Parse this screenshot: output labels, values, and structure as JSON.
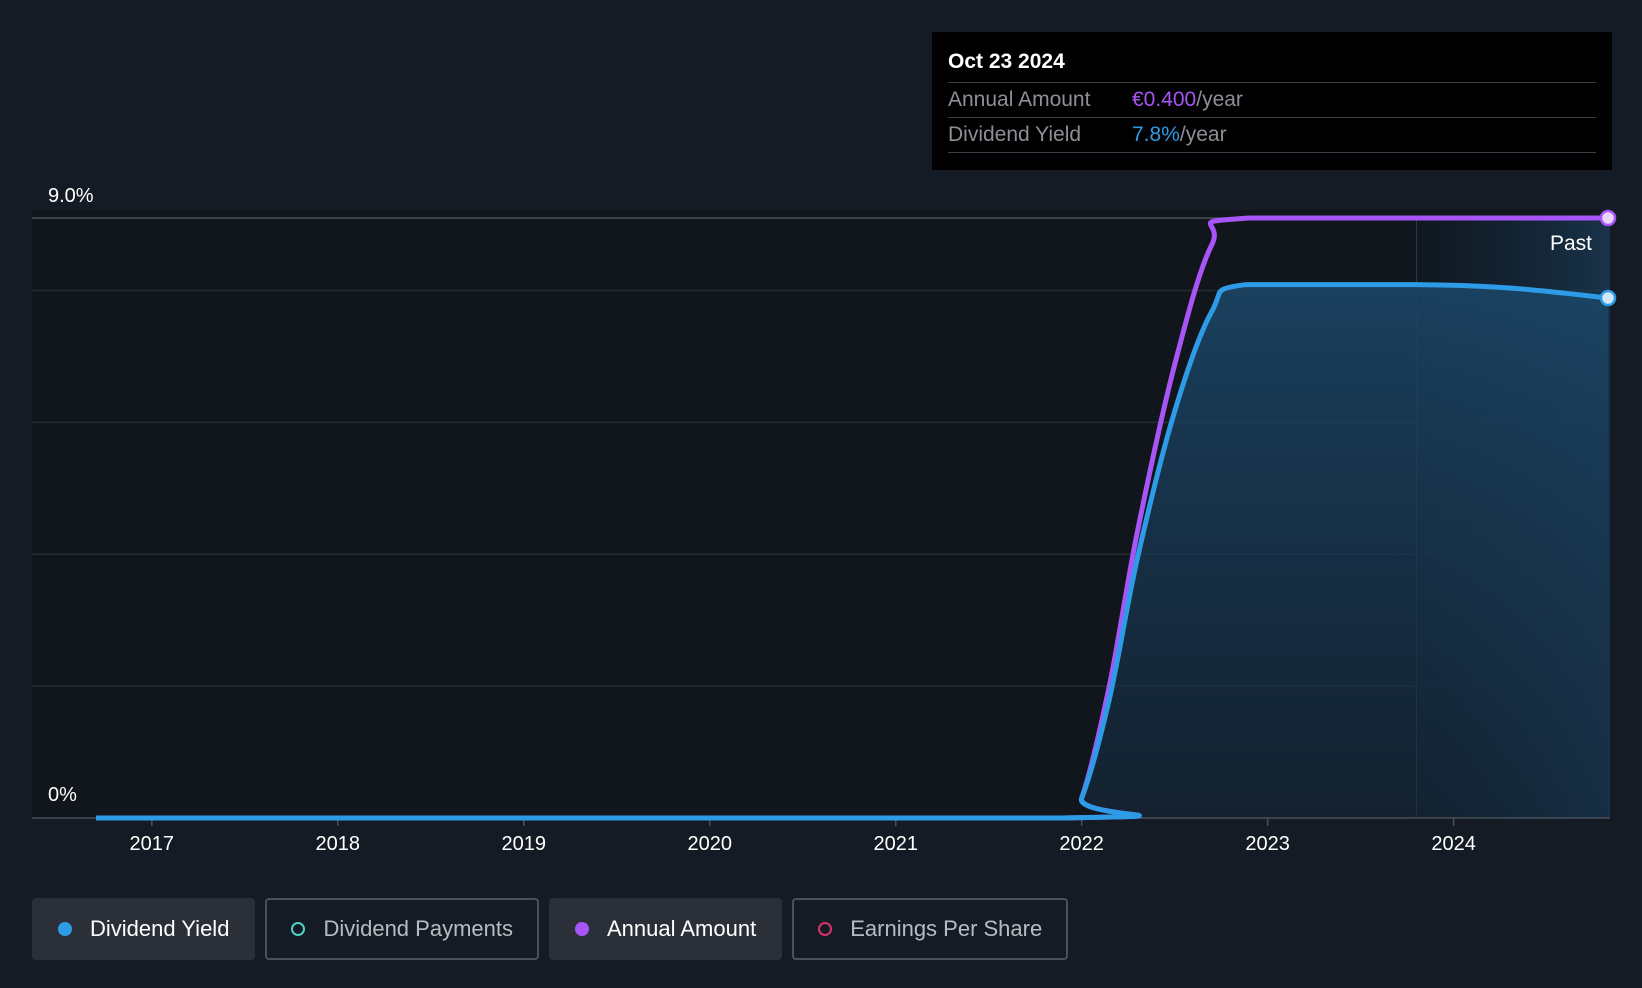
{
  "chart_data": {
    "type": "line",
    "y_axis": {
      "min": 0,
      "max": 9.0,
      "top_label": "9.0%",
      "bottom_label": "0%",
      "gridlines": 5
    },
    "x_axis": {
      "ticks": [
        "2017",
        "2018",
        "2019",
        "2020",
        "2021",
        "2022",
        "2023",
        "2024"
      ],
      "range": [
        2016.7,
        2024.83
      ]
    },
    "past_label": "Past",
    "past_region_start": 2023.8,
    "series": [
      {
        "name": "Annual Amount",
        "color": "#a855f7",
        "points": [
          [
            2016.7,
            0
          ],
          [
            2021.9,
            0
          ],
          [
            2022.0,
            0.3
          ],
          [
            2022.15,
            2.0
          ],
          [
            2022.3,
            4.3
          ],
          [
            2022.5,
            6.8
          ],
          [
            2022.7,
            8.6
          ],
          [
            2022.9,
            9.0
          ],
          [
            2024.83,
            9.0
          ]
        ]
      },
      {
        "name": "Dividend Yield",
        "color": "#2d9be6",
        "fill": true,
        "points": [
          [
            2016.7,
            0
          ],
          [
            2021.9,
            0
          ],
          [
            2022.0,
            0.3
          ],
          [
            2022.15,
            1.8
          ],
          [
            2022.3,
            3.9
          ],
          [
            2022.5,
            6.1
          ],
          [
            2022.7,
            7.6
          ],
          [
            2022.88,
            8.0
          ],
          [
            2023.8,
            8.0
          ],
          [
            2024.3,
            7.95
          ],
          [
            2024.83,
            7.8
          ]
        ]
      }
    ]
  },
  "tooltip": {
    "date": "Oct 23 2024",
    "annual_label": "Annual Amount",
    "annual_value": "€0.400",
    "annual_unit": "/year",
    "yield_label": "Dividend Yield",
    "yield_value": "7.8%",
    "yield_unit": "/year"
  },
  "legend": [
    {
      "label": "Dividend Yield",
      "color": "#2d9be6",
      "active": true,
      "filled": true
    },
    {
      "label": "Dividend Payments",
      "color": "#4fd1c5",
      "active": false,
      "filled": false
    },
    {
      "label": "Annual Amount",
      "color": "#a855f7",
      "active": true,
      "filled": true
    },
    {
      "label": "Earnings Per Share",
      "color": "#d6336c",
      "active": false,
      "filled": false
    }
  ]
}
